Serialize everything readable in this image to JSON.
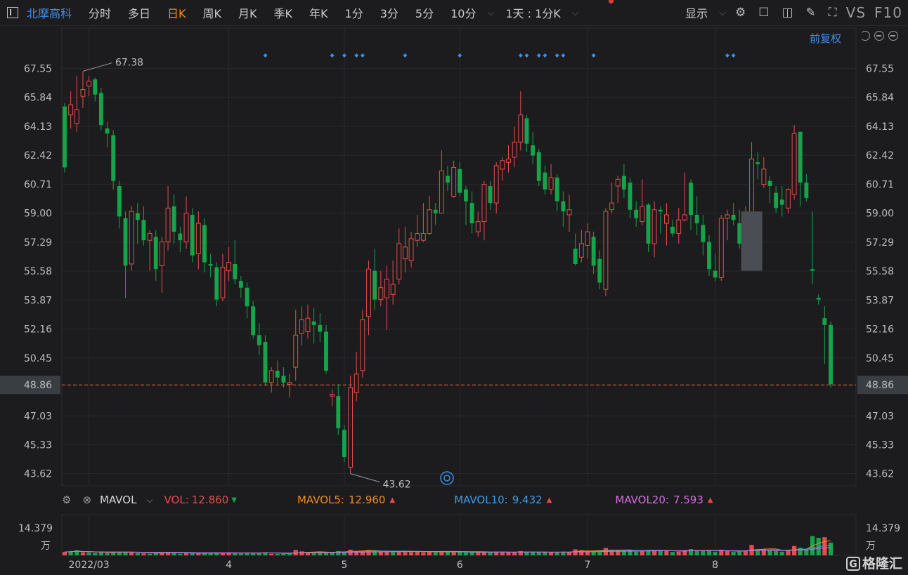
{
  "toolbar": {
    "stock_name": "北摩高科",
    "tabs": [
      "分时",
      "多日",
      "日K",
      "周K",
      "月K",
      "季K",
      "年K",
      "1分",
      "3分",
      "5分",
      "10分"
    ],
    "active_tab": "日K",
    "period_select": "1天 : 1分K",
    "display_label": "显示",
    "vs_label": "VS",
    "f10_label": "F10"
  },
  "adjust_label": "前复权",
  "volume_indicator": {
    "name": "MAVOL",
    "vol_label": "VOL:",
    "vol_value": "12.860",
    "mavol5_label": "MAVOL5:",
    "mavol5_value": "12.960",
    "mavol10_label": "MAVOL10:",
    "mavol10_value": "9.432",
    "mavol20_label": "MAVOL20:",
    "mavol20_value": "7.593",
    "max_label": "14.379",
    "unit_label": "万"
  },
  "logo_text": "格隆汇",
  "colors": {
    "up": "#e84b4b",
    "down": "#16a34a",
    "bg": "#1c1c1e",
    "grid": "#2d2d30",
    "accent": "#3d8ee8",
    "current": "#f08a24",
    "ma5": "#f08a24",
    "ma10": "#3d9be9",
    "ma20": "#d36ee0"
  },
  "chart_data": {
    "type": "candlestick",
    "y_ticks": [
      "67.55",
      "65.84",
      "64.13",
      "62.42",
      "60.71",
      "59.00",
      "57.29",
      "55.58",
      "53.87",
      "52.16",
      "50.45",
      "48.86",
      "47.03",
      "45.33",
      "43.62"
    ],
    "ylim": [
      42.9,
      68.6
    ],
    "current_price": 48.86,
    "current_price_label": "48.86",
    "high_label": "67.38",
    "low_label": "43.62",
    "x_labels": [
      "2022/03",
      "4",
      "5",
      "6",
      "7",
      "8"
    ],
    "x_label_index": [
      4,
      27,
      46,
      65,
      86,
      107
    ],
    "candles": [
      [
        65.3,
        61.7,
        65.5,
        61.4
      ],
      [
        64.8,
        65.4,
        66.2,
        64.0
      ],
      [
        64.3,
        65.1,
        67.1,
        63.8
      ],
      [
        65.9,
        66.3,
        67.38,
        65.2
      ],
      [
        66.5,
        66.8,
        67.1,
        65.9
      ],
      [
        66.9,
        66.0,
        67.0,
        65.6
      ],
      [
        66.1,
        64.2,
        66.4,
        63.9
      ],
      [
        64.0,
        63.7,
        64.4,
        62.9
      ],
      [
        63.6,
        60.9,
        63.9,
        60.4
      ],
      [
        60.6,
        58.8,
        60.9,
        58.1
      ],
      [
        58.7,
        55.9,
        59.1,
        54.0
      ],
      [
        56.0,
        59.1,
        59.4,
        55.6
      ],
      [
        59.0,
        58.6,
        59.6,
        57.2
      ],
      [
        58.6,
        57.4,
        59.4,
        57.1
      ],
      [
        57.4,
        57.8,
        58.0,
        55.6
      ],
      [
        57.6,
        55.7,
        58.0,
        55.0
      ],
      [
        55.9,
        57.3,
        57.6,
        54.3
      ],
      [
        57.3,
        59.3,
        60.6,
        56.8
      ],
      [
        59.4,
        57.9,
        60.1,
        57.2
      ],
      [
        57.8,
        57.4,
        58.2,
        56.7
      ],
      [
        57.3,
        59.0,
        60.0,
        56.9
      ],
      [
        58.9,
        56.5,
        59.3,
        56.1
      ],
      [
        56.6,
        58.4,
        59.1,
        55.7
      ],
      [
        58.3,
        56.1,
        58.7,
        55.5
      ],
      [
        56.0,
        55.9,
        56.6,
        55.2
      ],
      [
        55.8,
        53.9,
        56.1,
        53.5
      ],
      [
        54.0,
        55.8,
        56.6,
        53.8
      ],
      [
        55.6,
        56.1,
        57.0,
        55.0
      ],
      [
        56.0,
        55.1,
        57.4,
        54.8
      ],
      [
        55.0,
        54.6,
        55.3,
        54.0
      ],
      [
        54.6,
        53.5,
        54.9,
        52.8
      ],
      [
        53.5,
        51.8,
        53.8,
        51.6
      ],
      [
        51.8,
        51.2,
        52.5,
        50.6
      ],
      [
        51.4,
        49.0,
        51.8,
        48.8
      ],
      [
        49.0,
        49.7,
        49.9,
        48.4
      ],
      [
        49.7,
        49.3,
        50.3,
        48.9
      ],
      [
        49.4,
        49.0,
        49.9,
        48.7
      ],
      [
        48.9,
        49.0,
        49.5,
        48.1
      ],
      [
        49.9,
        51.8,
        53.3,
        49.1
      ],
      [
        51.9,
        52.7,
        53.5,
        51.2
      ],
      [
        52.0,
        52.8,
        53.6,
        51.6
      ],
      [
        52.6,
        52.4,
        53.4,
        51.3
      ],
      [
        52.4,
        52.0,
        53.1,
        51.4
      ],
      [
        52.0,
        49.7,
        52.4,
        49.5
      ],
      [
        48.2,
        48.3,
        48.6,
        47.6
      ],
      [
        48.2,
        46.3,
        48.9,
        45.9
      ],
      [
        46.2,
        44.6,
        46.5,
        44.3
      ],
      [
        44.0,
        48.7,
        49.4,
        43.62
      ],
      [
        48.4,
        49.5,
        50.8,
        47.9
      ],
      [
        49.7,
        52.7,
        53.3,
        49.3
      ],
      [
        52.9,
        55.7,
        56.2,
        51.8
      ],
      [
        55.6,
        53.9,
        56.9,
        53.3
      ],
      [
        53.9,
        54.6,
        55.6,
        53.5
      ],
      [
        54.0,
        55.1,
        55.9,
        52.1
      ],
      [
        54.2,
        54.8,
        56.2,
        53.6
      ],
      [
        55.1,
        57.2,
        58.1,
        54.8
      ],
      [
        56.3,
        57.0,
        58.2,
        55.5
      ],
      [
        56.2,
        57.5,
        57.9,
        55.8
      ],
      [
        57.4,
        57.8,
        58.9,
        57.0
      ],
      [
        57.4,
        57.8,
        59.6,
        57.3
      ],
      [
        57.8,
        59.2,
        60.0,
        57.7
      ],
      [
        59.2,
        59.0,
        59.6,
        58.3
      ],
      [
        59.0,
        61.5,
        62.7,
        59.0
      ],
      [
        61.2,
        60.8,
        61.8,
        60.3
      ],
      [
        60.0,
        61.7,
        62.1,
        59.9
      ],
      [
        61.6,
        60.2,
        62.0,
        60.0
      ],
      [
        60.4,
        59.7,
        60.6,
        58.3
      ],
      [
        59.6,
        58.4,
        60.3,
        57.8
      ],
      [
        57.9,
        58.5,
        59.1,
        57.6
      ],
      [
        58.5,
        60.7,
        60.9,
        57.4
      ],
      [
        60.6,
        59.6,
        60.9,
        59.2
      ],
      [
        59.6,
        61.8,
        62.0,
        59.0
      ],
      [
        61.6,
        62.1,
        62.3,
        60.9
      ],
      [
        62.0,
        62.2,
        63.0,
        61.4
      ],
      [
        62.3,
        63.2,
        64.1,
        61.7
      ],
      [
        63.2,
        64.8,
        66.2,
        62.7
      ],
      [
        64.6,
        63.1,
        64.8,
        62.6
      ],
      [
        63.0,
        62.4,
        63.8,
        61.9
      ],
      [
        62.6,
        60.9,
        62.8,
        60.6
      ],
      [
        61.4,
        60.4,
        61.8,
        60.1
      ],
      [
        60.4,
        61.1,
        61.9,
        60.1
      ],
      [
        61.1,
        59.7,
        61.3,
        59.1
      ],
      [
        59.7,
        59.1,
        60.3,
        58.2
      ],
      [
        58.9,
        59.2,
        60.1,
        57.9
      ],
      [
        56.9,
        56.0,
        57.8,
        55.9
      ],
      [
        56.4,
        57.2,
        58.0,
        56.1
      ],
      [
        57.1,
        57.9,
        58.4,
        56.3
      ],
      [
        57.6,
        55.9,
        57.9,
        55.4
      ],
      [
        56.3,
        54.9,
        56.8,
        54.5
      ],
      [
        54.5,
        59.1,
        59.3,
        54.1
      ],
      [
        59.2,
        59.6,
        60.8,
        59.0
      ],
      [
        60.6,
        61.0,
        61.2,
        59.6
      ],
      [
        61.2,
        60.4,
        61.9,
        59.9
      ],
      [
        60.8,
        59.2,
        61.1,
        58.7
      ],
      [
        59.2,
        58.7,
        59.7,
        58.2
      ],
      [
        58.5,
        59.4,
        61.0,
        58.3
      ],
      [
        59.5,
        57.2,
        59.6,
        56.7
      ],
      [
        57.2,
        59.2,
        59.7,
        56.4
      ],
      [
        59.2,
        59.1,
        59.4,
        57.8
      ],
      [
        58.4,
        58.9,
        59.6,
        57.1
      ],
      [
        58.2,
        57.8,
        58.6,
        57.6
      ],
      [
        57.8,
        58.6,
        59.3,
        57.2
      ],
      [
        58.6,
        58.9,
        61.4,
        58.5
      ],
      [
        60.8,
        58.9,
        61.0,
        58.0
      ],
      [
        58.9,
        58.4,
        60.0,
        57.7
      ],
      [
        58.3,
        57.3,
        58.9,
        56.5
      ],
      [
        57.3,
        55.7,
        57.7,
        55.3
      ],
      [
        55.6,
        55.2,
        56.6,
        55.0
      ],
      [
        55.2,
        58.7,
        58.9,
        55.0
      ],
      [
        58.7,
        58.9,
        59.2,
        57.4
      ],
      [
        58.9,
        58.6,
        59.6,
        58.3
      ],
      [
        58.4,
        57.2,
        59.2,
        56.9
      ],
      [
        57.5,
        58.5,
        59.4,
        57.0
      ],
      [
        58.6,
        62.2,
        63.2,
        58.4
      ],
      [
        62.0,
        61.9,
        62.6,
        61.0
      ],
      [
        60.7,
        61.6,
        62.3,
        60.5
      ],
      [
        60.9,
        60.6,
        61.2,
        59.6
      ],
      [
        60.2,
        59.3,
        60.6,
        59.0
      ],
      [
        59.8,
        59.5,
        60.6,
        58.8
      ],
      [
        59.3,
        60.4,
        60.5,
        59.0
      ],
      [
        60.1,
        63.7,
        64.2,
        59.8
      ],
      [
        63.8,
        60.8,
        63.8,
        59.4
      ],
      [
        60.8,
        59.9,
        61.3,
        59.7
      ],
      [
        55.7,
        55.6,
        59.1,
        54.8
      ],
      [
        54.0,
        53.9,
        54.2,
        53.6
      ],
      [
        52.8,
        52.4,
        53.5,
        50.1
      ],
      [
        52.4,
        48.9,
        52.6,
        48.7
      ]
    ],
    "volumes": [
      [
        1.2,
        1
      ],
      [
        1.4,
        0
      ],
      [
        1.8,
        0
      ],
      [
        1.1,
        1
      ],
      [
        1.0,
        0
      ],
      [
        0.9,
        0
      ],
      [
        1.1,
        0
      ],
      [
        0.8,
        0
      ],
      [
        1.3,
        0
      ],
      [
        1.1,
        0
      ],
      [
        1.2,
        0
      ],
      [
        1.0,
        1
      ],
      [
        0.8,
        0
      ],
      [
        0.7,
        1
      ],
      [
        0.6,
        0
      ],
      [
        0.9,
        0
      ],
      [
        1.1,
        1
      ],
      [
        1.2,
        1
      ],
      [
        0.9,
        0
      ],
      [
        0.6,
        0
      ],
      [
        0.9,
        1
      ],
      [
        0.8,
        0
      ],
      [
        0.7,
        1
      ],
      [
        0.9,
        0
      ],
      [
        0.7,
        0
      ],
      [
        0.8,
        0
      ],
      [
        0.9,
        1
      ],
      [
        1.0,
        1
      ],
      [
        0.9,
        0
      ],
      [
        0.7,
        0
      ],
      [
        0.8,
        0
      ],
      [
        1.0,
        0
      ],
      [
        0.8,
        0
      ],
      [
        1.1,
        0
      ],
      [
        0.6,
        1
      ],
      [
        0.5,
        0
      ],
      [
        0.5,
        0
      ],
      [
        0.6,
        0
      ],
      [
        1.9,
        1
      ],
      [
        1.4,
        1
      ],
      [
        1.1,
        1
      ],
      [
        0.9,
        0
      ],
      [
        1.0,
        0
      ],
      [
        1.3,
        0
      ],
      [
        1.1,
        0
      ],
      [
        1.5,
        0
      ],
      [
        1.3,
        0
      ],
      [
        2.0,
        1
      ],
      [
        1.4,
        1
      ],
      [
        1.6,
        1
      ],
      [
        1.9,
        1
      ],
      [
        1.5,
        0
      ],
      [
        1.3,
        1
      ],
      [
        1.2,
        1
      ],
      [
        1.2,
        0
      ],
      [
        1.5,
        1
      ],
      [
        1.6,
        1
      ],
      [
        1.2,
        1
      ],
      [
        1.3,
        1
      ],
      [
        1.1,
        1
      ],
      [
        1.4,
        1
      ],
      [
        1.0,
        0
      ],
      [
        1.4,
        1
      ],
      [
        1.2,
        0
      ],
      [
        1.1,
        1
      ],
      [
        1.1,
        0
      ],
      [
        1.0,
        0
      ],
      [
        1.1,
        0
      ],
      [
        1.0,
        1
      ],
      [
        1.2,
        1
      ],
      [
        1.0,
        0
      ],
      [
        1.3,
        1
      ],
      [
        1.2,
        1
      ],
      [
        1.0,
        1
      ],
      [
        1.1,
        1
      ],
      [
        1.5,
        1
      ],
      [
        1.2,
        0
      ],
      [
        1.0,
        0
      ],
      [
        1.1,
        0
      ],
      [
        1.0,
        0
      ],
      [
        1.1,
        1
      ],
      [
        1.2,
        0
      ],
      [
        1.3,
        0
      ],
      [
        1.1,
        1
      ],
      [
        2.1,
        1
      ],
      [
        1.8,
        1
      ],
      [
        1.5,
        1
      ],
      [
        1.4,
        0
      ],
      [
        1.6,
        0
      ],
      [
        2.6,
        1
      ],
      [
        2.0,
        1
      ],
      [
        1.7,
        1
      ],
      [
        1.5,
        0
      ],
      [
        1.8,
        0
      ],
      [
        1.3,
        0
      ],
      [
        1.7,
        1
      ],
      [
        1.9,
        0
      ],
      [
        1.9,
        1
      ],
      [
        1.6,
        0
      ],
      [
        1.5,
        1
      ],
      [
        1.2,
        0
      ],
      [
        1.3,
        1
      ],
      [
        1.8,
        1
      ],
      [
        2.2,
        0
      ],
      [
        1.7,
        0
      ],
      [
        1.5,
        0
      ],
      [
        1.6,
        0
      ],
      [
        1.2,
        0
      ],
      [
        2.0,
        1
      ],
      [
        1.6,
        1
      ],
      [
        1.2,
        0
      ],
      [
        1.3,
        0
      ],
      [
        1.7,
        1
      ],
      [
        3.7,
        1
      ],
      [
        2.2,
        0
      ],
      [
        2.1,
        1
      ],
      [
        1.8,
        0
      ],
      [
        1.5,
        0
      ],
      [
        1.3,
        0
      ],
      [
        1.6,
        1
      ],
      [
        3.3,
        1
      ],
      [
        2.7,
        0
      ],
      [
        2.1,
        0
      ],
      [
        6.8,
        0
      ],
      [
        6.2,
        0
      ],
      [
        6.4,
        1
      ],
      [
        4.5,
        0
      ]
    ],
    "vol_max": 14.379
  }
}
